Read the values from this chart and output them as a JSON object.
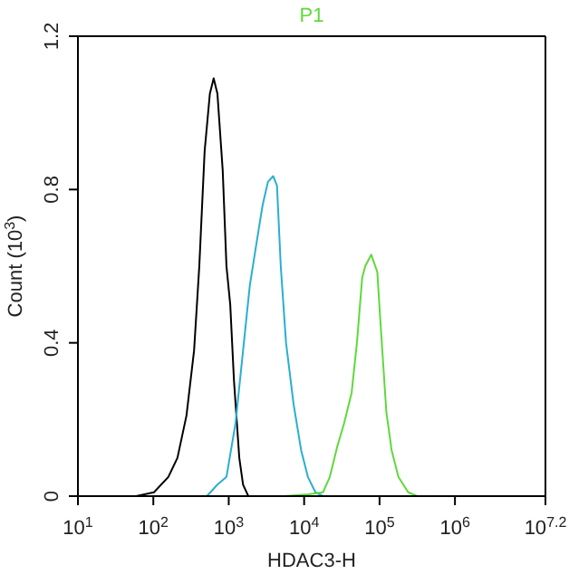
{
  "chart_data": {
    "type": "line",
    "title": "P1",
    "xlabel": "HDAC3-H",
    "ylabel": "Count (10$^{3}$)",
    "log": "x",
    "xlim": [
      10,
      15848932
    ],
    "xticks": [
      {
        "value": 10,
        "label": "10$^{1}$"
      },
      {
        "value": 100,
        "label": "10$^{2}$"
      },
      {
        "value": 1000,
        "label": "10$^{3}$"
      },
      {
        "value": 10000,
        "label": "10$^{4}$"
      },
      {
        "value": 100000,
        "label": "10$^{5}$"
      },
      {
        "value": 1000000,
        "label": "10$^{6}$"
      },
      {
        "value": 15848932,
        "label": "10$^{7.2}$"
      }
    ],
    "ylim": [
      0,
      1.2
    ],
    "yticks": [
      0,
      0.4,
      0.8,
      1.2
    ],
    "marker": "none",
    "line_style": "solid",
    "series": [
      {
        "color": "#000000",
        "x": [
          59,
          102,
          158,
          209,
          275,
          347,
          407,
          479,
          562,
          631,
          708,
          832,
          933,
          1047,
          1175,
          1380,
          1549,
          1820
        ],
        "values": [
          0,
          0.01,
          0.05,
          0.1,
          0.21,
          0.38,
          0.6,
          0.9,
          1.05,
          1.09,
          1.05,
          0.85,
          0.6,
          0.5,
          0.3,
          0.1,
          0.03,
          0
        ]
      },
      {
        "color": "#2aaed2",
        "x": [
          513,
          708,
          933,
          1230,
          1549,
          1905,
          2291,
          2818,
          3311,
          3890,
          4365,
          4898,
          5754,
          7244,
          9120,
          11220,
          14125,
          17783
        ],
        "values": [
          0,
          0.03,
          0.05,
          0.19,
          0.38,
          0.55,
          0.65,
          0.76,
          0.82,
          0.835,
          0.81,
          0.6,
          0.4,
          0.24,
          0.12,
          0.05,
          0.01,
          0
        ]
      },
      {
        "color": "#5fd93c",
        "x": [
          5495,
          11220,
          17783,
          21878,
          27542,
          33884,
          42658,
          50119,
          58884,
          64565,
          77625,
          93325,
          102329,
          123027,
          144544,
          177828,
          239883,
          316228
        ],
        "values": [
          0,
          0.005,
          0.01,
          0.05,
          0.13,
          0.19,
          0.27,
          0.4,
          0.57,
          0.6,
          0.63,
          0.585,
          0.46,
          0.22,
          0.12,
          0.05,
          0.01,
          0
        ]
      }
    ]
  }
}
